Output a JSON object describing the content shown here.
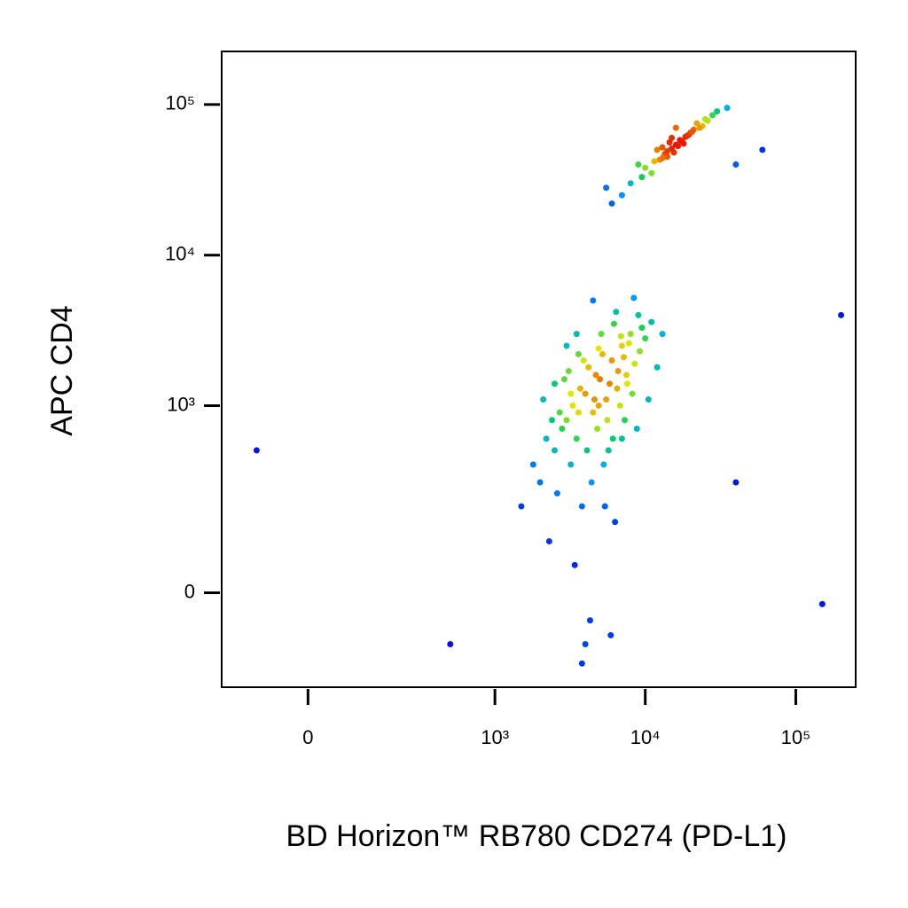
{
  "chart_data": {
    "type": "scatter",
    "x_label": "BD Horizon™ RB780 CD274 (PD-L1)",
    "y_label": "APC CD4",
    "xscale": "biexponential",
    "yscale": "biexponential",
    "xlim": [
      -200,
      250000
    ],
    "ylim": [
      -230,
      225000
    ],
    "xticks": [
      0,
      {
        "value": 1000,
        "label": "10³"
      },
      {
        "value": 10000,
        "label": "10⁴"
      },
      {
        "value": 100000,
        "label": "10⁵"
      }
    ],
    "yticks": [
      0,
      {
        "value": 1000,
        "label": "10³"
      },
      {
        "value": 10000,
        "label": "10⁴"
      },
      {
        "value": 100000,
        "label": "10⁵"
      }
    ],
    "x": [
      12000,
      15000,
      18000,
      9000,
      20000,
      14000,
      16000,
      11000,
      25000,
      8000,
      13000,
      17000,
      19000,
      22000,
      10000,
      15500,
      14500,
      16500,
      13500,
      21000,
      7000,
      30000,
      12500,
      18500,
      17500,
      9500,
      24000,
      11500,
      28000,
      6000,
      26000,
      15000,
      16000,
      14000,
      19500,
      13000,
      20500,
      35000,
      5500,
      23000,
      3000,
      4000,
      5000,
      2500,
      6000,
      3500,
      4500,
      7000,
      2000,
      8000,
      5500,
      3200,
      4200,
      6500,
      2800,
      9000,
      3800,
      5200,
      7500,
      2300,
      4800,
      6200,
      3300,
      10000,
      4100,
      5800,
      2600,
      7200,
      3700,
      8500,
      4400,
      5600,
      3100,
      6800,
      2200,
      9500,
      4600,
      5300,
      3600,
      7800,
      2900,
      6100,
      4900,
      3400,
      8200,
      5100,
      2700,
      6600,
      3900,
      11000,
      4300,
      5700,
      3000,
      7300,
      2400,
      9200,
      4700,
      6400,
      3500,
      8800,
      1800,
      12000,
      4000,
      5400,
      3200,
      7600,
      2100,
      6900,
      4500,
      13000,
      1500,
      10500,
      3800,
      5900,
      2500,
      8400,
      6300,
      4900,
      3600,
      7000,
      -100,
      40000,
      60000,
      200000,
      40000,
      150000,
      500
    ],
    "y": [
      50000,
      60000,
      55000,
      40000,
      65000,
      45000,
      70000,
      35000,
      80000,
      30000,
      52000,
      58000,
      62000,
      75000,
      38000,
      48000,
      56000,
      53000,
      47000,
      68000,
      25000,
      90000,
      43000,
      61000,
      57000,
      33000,
      72000,
      42000,
      85000,
      22000,
      78000,
      51000,
      54000,
      49000,
      63000,
      44000,
      66000,
      95000,
      28000,
      70000,
      800,
      1200,
      1500,
      500,
      2000,
      600,
      900,
      2500,
      300,
      3000,
      1100,
      400,
      1800,
      1300,
      700,
      4000,
      200,
      2200,
      1600,
      100,
      700,
      3500,
      1000,
      2800,
      500,
      1400,
      250,
      2100,
      1300,
      1900,
      300,
      800,
      1700,
      1000,
      600,
      3300,
      1100,
      400,
      900,
      2600,
      1500,
      600,
      2400,
      50,
      1200,
      3000,
      900,
      1700,
      2000,
      3600,
      -50,
      500,
      2500,
      800,
      800,
      2300,
      1600,
      4200,
      3000,
      700,
      400,
      1800,
      -100,
      200,
      1200,
      1400,
      1100,
      2900,
      5000,
      3000,
      200,
      1100,
      -150,
      -80,
      1400,
      5200,
      150,
      1000,
      2200,
      600,
      500,
      40000,
      50000,
      4000,
      300,
      -20,
      -100
    ]
  }
}
